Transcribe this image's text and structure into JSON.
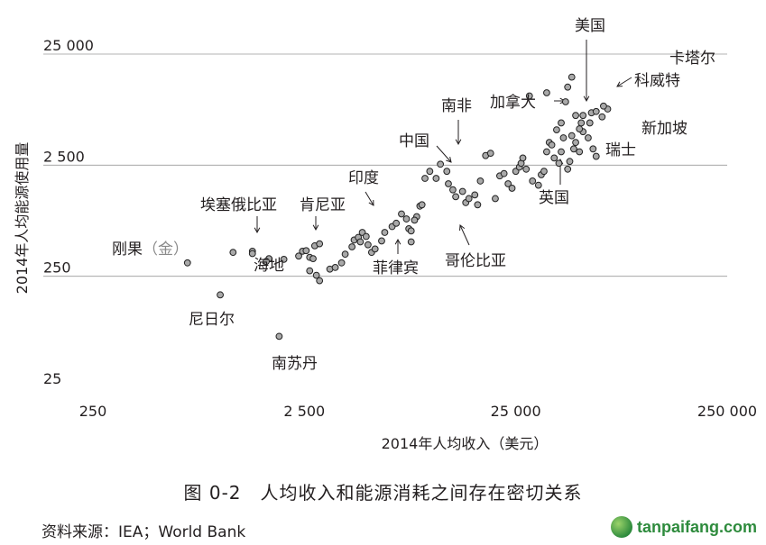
{
  "chart_data": {
    "type": "scatter",
    "xlabel": "2014年人均收入（美元）",
    "ylabel": "2014年人均能源使用量",
    "x_scale": "log",
    "y_scale": "log",
    "xlim": [
      250,
      250000
    ],
    "ylim": [
      25,
      25000
    ],
    "x_ticks": [
      {
        "value": 250,
        "label": "250"
      },
      {
        "value": 2500,
        "label": "2 500"
      },
      {
        "value": 25000,
        "label": "25 000"
      },
      {
        "value": 250000,
        "label": "250 000"
      }
    ],
    "y_ticks": [
      {
        "value": 25,
        "label": "25"
      },
      {
        "value": 250,
        "label": "250"
      },
      {
        "value": 2500,
        "label": "2 500"
      },
      {
        "value": 25000,
        "label": "25 000"
      }
    ],
    "gridlines": "horizontal",
    "annotations": [
      {
        "label": "美国",
        "x": 52000,
        "y": 7000
      },
      {
        "label": "卡塔尔",
        "x": 92000,
        "y": 18500
      },
      {
        "label": "科威特",
        "x": 65000,
        "y": 10000
      },
      {
        "label": "加拿大",
        "x": 50000,
        "y": 7500
      },
      {
        "label": "新加坡",
        "x": 70000,
        "y": 5000
      },
      {
        "label": "瑞士",
        "x": 58000,
        "y": 3100
      },
      {
        "label": "南非",
        "x": 6800,
        "y": 2800
      },
      {
        "label": "中国",
        "x": 7000,
        "y": 2300
      },
      {
        "label": "英国",
        "x": 40000,
        "y": 2800
      },
      {
        "label": "印度",
        "x": 5500,
        "y": 650
      },
      {
        "label": "哥伦比亚",
        "x": 13000,
        "y": 800
      },
      {
        "label": "菲律宾",
        "x": 6500,
        "y": 400
      },
      {
        "label": "肯尼亚",
        "x": 2600,
        "y": 410
      },
      {
        "label": "埃塞俄比亚",
        "x": 1500,
        "y": 390
      },
      {
        "label": "海地",
        "x": 1700,
        "y": 350
      },
      {
        "label": "刚果（金）",
        "x": 700,
        "y": 330
      },
      {
        "label": "尼日尔",
        "x": 1000,
        "y": 170
      },
      {
        "label": "南苏丹",
        "x": 1900,
        "y": 72
      }
    ],
    "points": [
      [
        700,
        330
      ],
      [
        1000,
        170
      ],
      [
        1900,
        72
      ],
      [
        1150,
        410
      ],
      [
        1420,
        420
      ],
      [
        1420,
        400
      ],
      [
        1700,
        360
      ],
      [
        2000,
        355
      ],
      [
        1650,
        340
      ],
      [
        2350,
        380
      ],
      [
        2450,
        420
      ],
      [
        2550,
        425
      ],
      [
        2800,
        470
      ],
      [
        2950,
        490
      ],
      [
        2650,
        370
      ],
      [
        2750,
        360
      ],
      [
        2650,
        280
      ],
      [
        2850,
        255
      ],
      [
        2950,
        228
      ],
      [
        3300,
        290
      ],
      [
        3500,
        300
      ],
      [
        3750,
        330
      ],
      [
        3900,
        395
      ],
      [
        4200,
        460
      ],
      [
        4300,
        530
      ],
      [
        4500,
        560
      ],
      [
        4600,
        510
      ],
      [
        4700,
        620
      ],
      [
        4900,
        570
      ],
      [
        5000,
        480
      ],
      [
        5200,
        410
      ],
      [
        5400,
        440
      ],
      [
        5800,
        520
      ],
      [
        6000,
        620
      ],
      [
        6500,
        700
      ],
      [
        6800,
        750
      ],
      [
        7200,
        910
      ],
      [
        7600,
        820
      ],
      [
        7800,
        670
      ],
      [
        8000,
        640
      ],
      [
        8500,
        860
      ],
      [
        8000,
        510
      ],
      [
        8300,
        800
      ],
      [
        8800,
        1070
      ],
      [
        9000,
        1100
      ],
      [
        9300,
        1900
      ],
      [
        9800,
        2200
      ],
      [
        10500,
        1900
      ],
      [
        11000,
        2550
      ],
      [
        11800,
        2200
      ],
      [
        12000,
        1700
      ],
      [
        12600,
        1500
      ],
      [
        13000,
        1300
      ],
      [
        14000,
        1450
      ],
      [
        14500,
        1150
      ],
      [
        15000,
        1250
      ],
      [
        16000,
        1350
      ],
      [
        16500,
        1100
      ],
      [
        17000,
        1800
      ],
      [
        18000,
        3050
      ],
      [
        19000,
        3200
      ],
      [
        20000,
        1250
      ],
      [
        21000,
        2000
      ],
      [
        22000,
        2100
      ],
      [
        23000,
        1700
      ],
      [
        24000,
        1550
      ],
      [
        25000,
        2200
      ],
      [
        26000,
        2400
      ],
      [
        26500,
        2600
      ],
      [
        27000,
        2900
      ],
      [
        28000,
        2300
      ],
      [
        30000,
        1800
      ],
      [
        32000,
        1650
      ],
      [
        33000,
        2050
      ],
      [
        34000,
        2200
      ],
      [
        35000,
        3300
      ],
      [
        36000,
        4000
      ],
      [
        37000,
        3800
      ],
      [
        38000,
        2900
      ],
      [
        39000,
        5200
      ],
      [
        40000,
        2600
      ],
      [
        41000,
        3300
      ],
      [
        42000,
        4400
      ],
      [
        44000,
        2300
      ],
      [
        45000,
        2700
      ],
      [
        46000,
        4600
      ],
      [
        47000,
        3500
      ],
      [
        48000,
        4000
      ],
      [
        50000,
        3300
      ],
      [
        52000,
        5000
      ],
      [
        55000,
        4400
      ],
      [
        56000,
        6000
      ],
      [
        58000,
        3500
      ],
      [
        60000,
        3000
      ],
      [
        29000,
        10500
      ],
      [
        35000,
        11200
      ],
      [
        41000,
        6000
      ],
      [
        43000,
        9300
      ],
      [
        44000,
        12600
      ],
      [
        46000,
        15500
      ],
      [
        48000,
        7000
      ],
      [
        50000,
        5300
      ],
      [
        51000,
        6000
      ],
      [
        52000,
        7000
      ],
      [
        57000,
        7400
      ],
      [
        60000,
        7600
      ],
      [
        64000,
        6800
      ],
      [
        68000,
        8000
      ],
      [
        65000,
        8500
      ]
    ]
  },
  "labels": {
    "caption": "图 0-2　人均收入和能源消耗之间存在密切关系",
    "source": "资料来源：IEA；World Bank",
    "watermark": "tanpaifang.com"
  }
}
